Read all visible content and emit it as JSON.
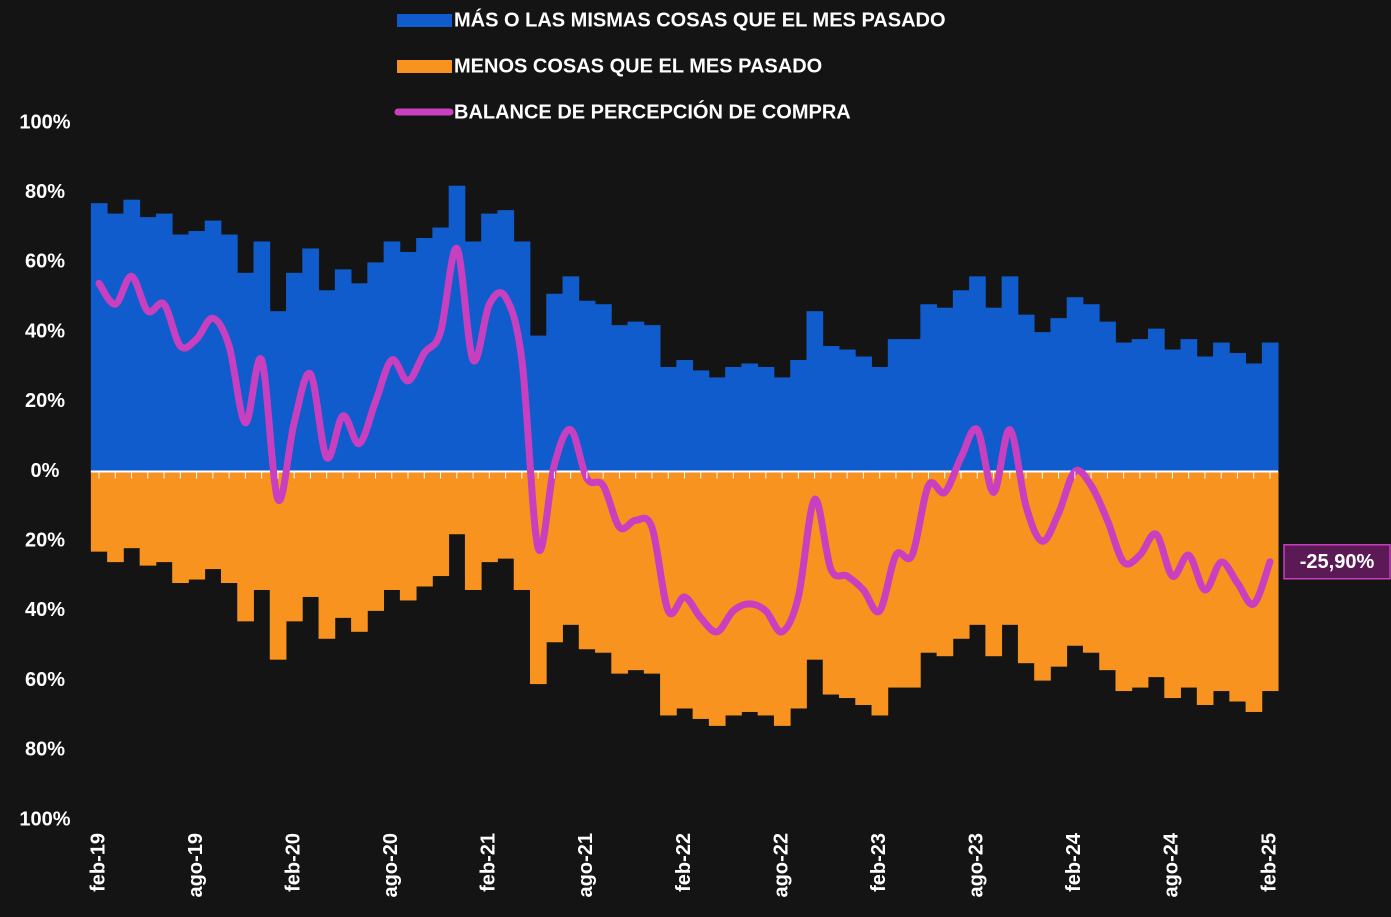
{
  "chart_data": {
    "type": "bar_line",
    "categories": [
      "feb-19",
      null,
      null,
      null,
      null,
      null,
      "ago-19",
      null,
      null,
      null,
      null,
      null,
      "feb-20",
      null,
      null,
      null,
      null,
      null,
      "ago-20",
      null,
      null,
      null,
      null,
      null,
      "feb-21",
      null,
      null,
      null,
      null,
      null,
      "ago-21",
      null,
      null,
      null,
      null,
      null,
      "feb-22",
      null,
      null,
      null,
      null,
      null,
      "ago-22",
      null,
      null,
      null,
      null,
      null,
      "feb-23",
      null,
      null,
      null,
      null,
      null,
      "ago-23",
      null,
      null,
      null,
      null,
      null,
      "feb-24",
      null,
      null,
      null,
      null,
      null,
      "ago-24",
      null,
      null,
      null,
      null,
      null,
      "feb-25"
    ],
    "series": [
      {
        "name": "MÁS O LAS MISMAS COSAS QUE EL MES PASADO",
        "kind": "bar",
        "color": "#105ccc",
        "values": [
          77,
          74,
          78,
          73,
          74,
          68,
          69,
          72,
          68,
          57,
          66,
          46,
          57,
          64,
          52,
          58,
          54,
          60,
          66,
          63,
          67,
          70,
          82,
          66,
          74,
          75,
          66,
          39,
          51,
          56,
          49,
          48,
          42,
          43,
          42,
          30,
          32,
          29,
          27,
          30,
          31,
          30,
          27,
          32,
          46,
          36,
          35,
          33,
          30,
          38,
          38,
          48,
          47,
          52,
          56,
          47,
          56,
          45,
          40,
          44,
          50,
          48,
          43,
          37,
          38,
          41,
          35,
          38,
          33,
          37,
          34,
          31,
          37
        ]
      },
      {
        "name": "MENOS COSAS QUE EL MES PASADO",
        "kind": "bar",
        "color": "#f7931e",
        "values": [
          -23,
          -26,
          -22,
          -27,
          -26,
          -32,
          -31,
          -28,
          -32,
          -43,
          -34,
          -54,
          -43,
          -36,
          -48,
          -42,
          -46,
          -40,
          -34,
          -37,
          -33,
          -30,
          -18,
          -34,
          -26,
          -25,
          -34,
          -61,
          -49,
          -44,
          -51,
          -52,
          -58,
          -57,
          -58,
          -70,
          -68,
          -71,
          -73,
          -70,
          -69,
          -70,
          -73,
          -68,
          -54,
          -64,
          -65,
          -67,
          -70,
          -62,
          -62,
          -52,
          -53,
          -48,
          -44,
          -53,
          -44,
          -55,
          -60,
          -56,
          -50,
          -52,
          -57,
          -63,
          -62,
          -59,
          -65,
          -62,
          -67,
          -63,
          -66,
          -69,
          -63
        ]
      },
      {
        "name": "BALANCE DE PERCEPCIÓN DE COMPRA",
        "kind": "line",
        "color": "#c83fbf",
        "values": [
          54,
          48,
          56,
          46,
          48,
          36,
          38,
          44,
          36,
          14,
          32,
          -8,
          14,
          28,
          4,
          16,
          8,
          20,
          32,
          26,
          34,
          40,
          64,
          32,
          48,
          50,
          32,
          -22,
          2,
          12,
          -2,
          -4,
          -16,
          -14,
          -16,
          -40,
          -36,
          -42,
          -46,
          -40,
          -38,
          -40,
          -46,
          -36,
          -8,
          -28,
          -30,
          -34,
          -40,
          -24,
          -24,
          -4,
          -6,
          4,
          12,
          -6,
          12,
          -10,
          -20,
          -12,
          0,
          -4,
          -14,
          -26,
          -24,
          -18,
          -30,
          -24,
          -34,
          -26,
          -32,
          -38,
          -25.9
        ],
        "value_labels": [
          null,
          null,
          null,
          null,
          null,
          null,
          null,
          null,
          null,
          null,
          null,
          null,
          null,
          null,
          null,
          null,
          null,
          null,
          null,
          null,
          null,
          null,
          null,
          null,
          null,
          null,
          null,
          null,
          null,
          null,
          null,
          null,
          null,
          null,
          null,
          null,
          null,
          null,
          null,
          null,
          null,
          null,
          null,
          null,
          null,
          null,
          null,
          null,
          null,
          null,
          null,
          null,
          null,
          null,
          null,
          null,
          null,
          null,
          null,
          null,
          null,
          null,
          null,
          null,
          null,
          null,
          null,
          null,
          null,
          null,
          null,
          null,
          "-25,90%"
        ]
      }
    ],
    "ylim": [
      -100,
      100
    ],
    "yticks": [
      {
        "value": 100,
        "label": "100%"
      },
      {
        "value": 80,
        "label": "80%"
      },
      {
        "value": 60,
        "label": "60%"
      },
      {
        "value": 40,
        "label": "40%"
      },
      {
        "value": 20,
        "label": "20%"
      },
      {
        "value": 0,
        "label": "0%"
      },
      {
        "value": -20,
        "label": "20%"
      },
      {
        "value": -40,
        "label": "40%"
      },
      {
        "value": -60,
        "label": "60%"
      },
      {
        "value": -80,
        "label": "80%"
      },
      {
        "value": -100,
        "label": "100%"
      }
    ]
  }
}
